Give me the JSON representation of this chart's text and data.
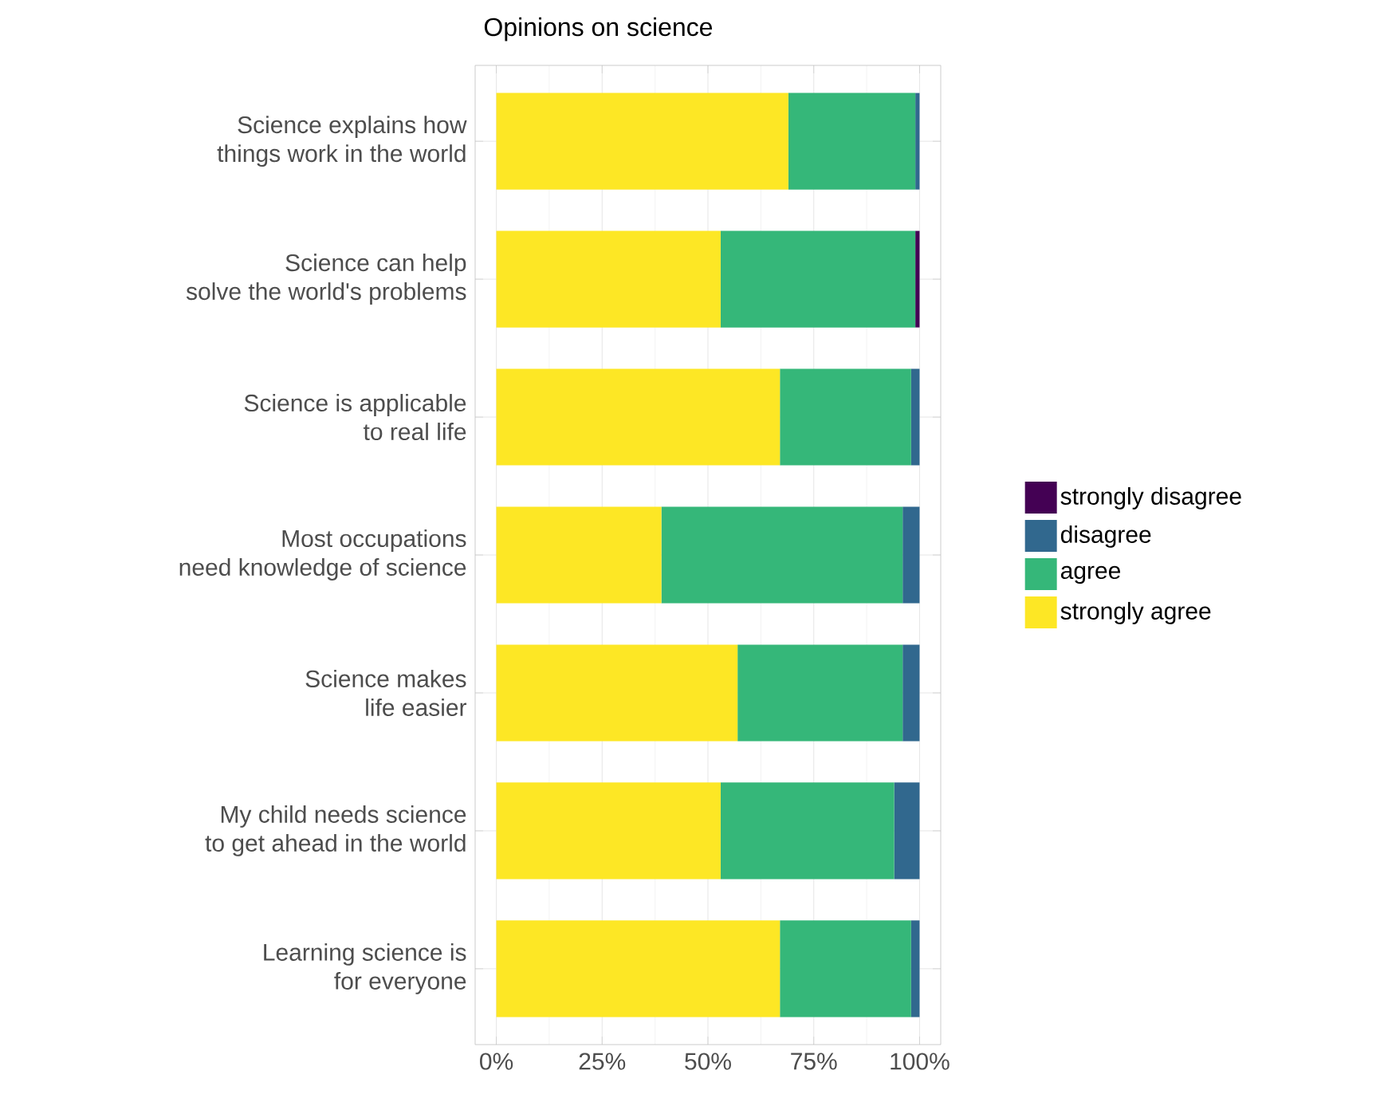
{
  "chart_data": {
    "type": "bar",
    "orientation": "horizontal",
    "stacked": true,
    "title": "Opinions on science",
    "categories": [
      "Science explains how\nthings work in the world",
      "Science can help\nsolve the world's problems",
      "Science is applicable\nto real life",
      "Most occupations\nneed knowledge of science",
      "Science makes\nlife easier",
      "My child needs science\nto get ahead in the world",
      "Learning science is\nfor everyone"
    ],
    "series": [
      {
        "name": "strongly agree",
        "color": "#fde725",
        "values": [
          69,
          53,
          67,
          39,
          57,
          53,
          67
        ]
      },
      {
        "name": "agree",
        "color": "#35b779",
        "values": [
          30,
          46,
          31,
          57,
          39,
          41,
          31
        ]
      },
      {
        "name": "disagree",
        "color": "#31688e",
        "values": [
          1,
          0,
          2,
          4,
          4,
          6,
          2
        ]
      },
      {
        "name": "strongly disagree",
        "color": "#440154",
        "values": [
          0,
          1,
          0,
          0,
          0,
          0,
          0
        ]
      }
    ],
    "xlim": [
      -5,
      105
    ],
    "xticks": [
      {
        "value": 0,
        "label": "0%"
      },
      {
        "value": 25,
        "label": "25%"
      },
      {
        "value": 50,
        "label": "50%"
      },
      {
        "value": 75,
        "label": "75%"
      },
      {
        "value": 100,
        "label": "100%"
      }
    ],
    "grid": true,
    "legend": "right"
  }
}
